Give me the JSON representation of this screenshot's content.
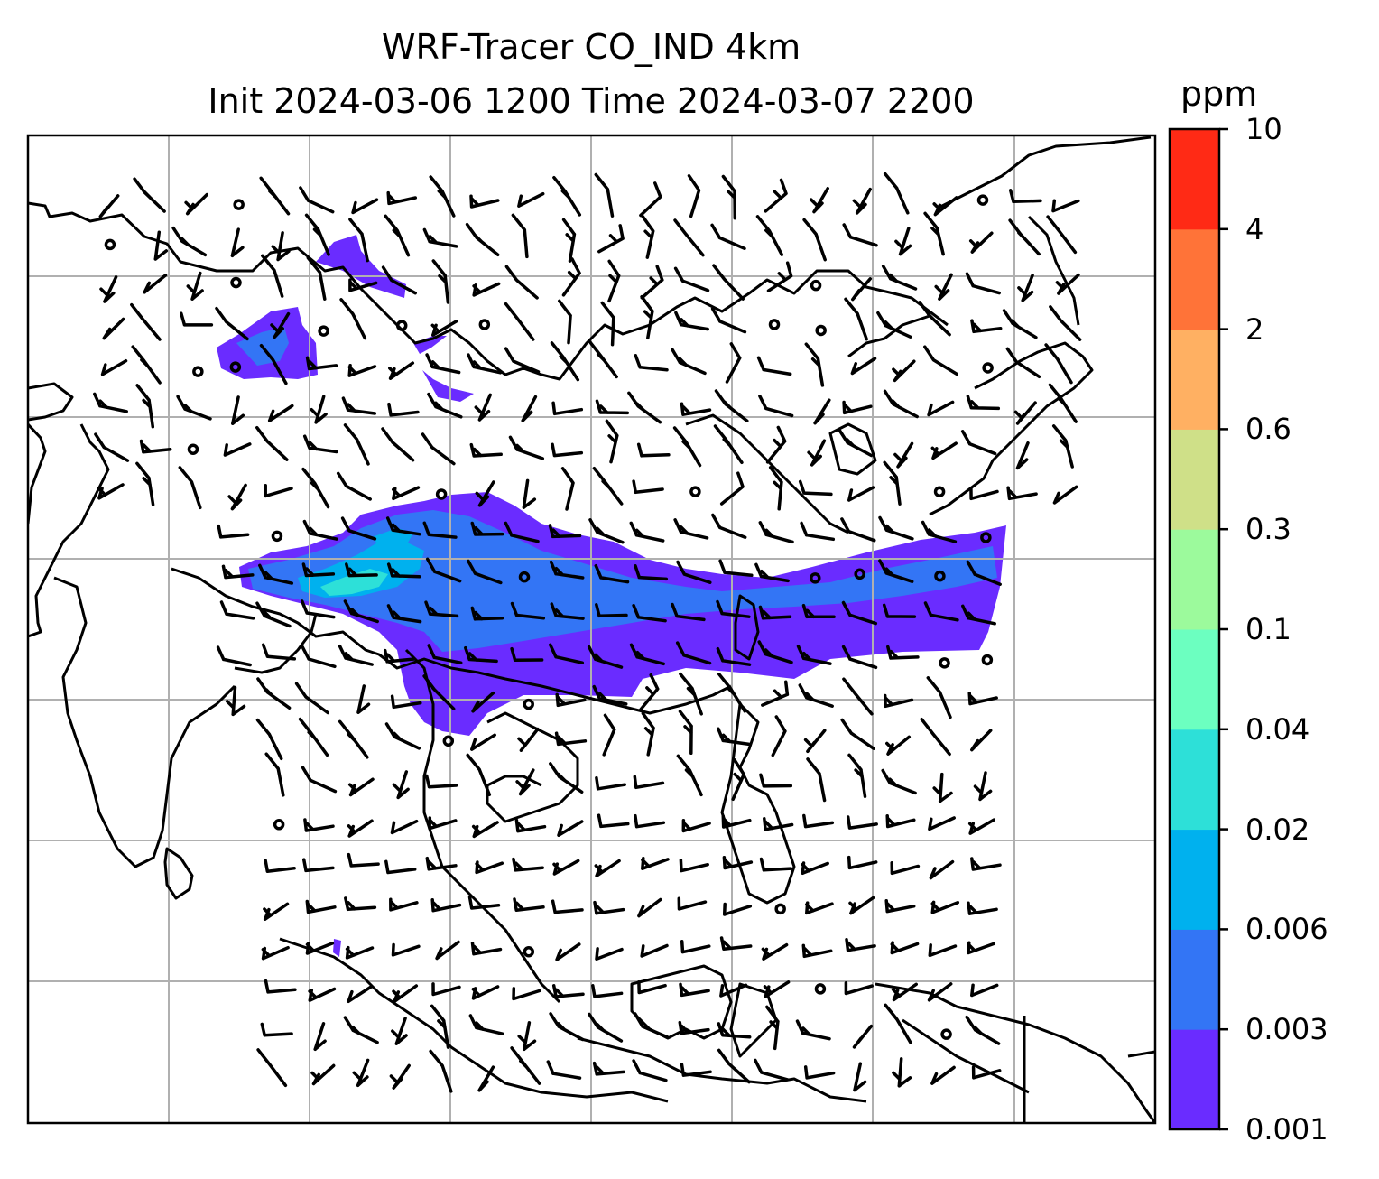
{
  "title": "WRF-Tracer CO_IND 4km",
  "subtitle": "Init 2024-03-06 1200 Time 2024-03-07 2200",
  "colorbar": {
    "unit": "ppm",
    "levels": [
      "0.001",
      "0.003",
      "0.006",
      "0.02",
      "0.04",
      "0.1",
      "0.3",
      "0.6",
      "2",
      "4",
      "10"
    ],
    "colors": [
      "#6a2cff",
      "#3375f5",
      "#00b1ee",
      "#2de0d8",
      "#6cffc0",
      "#9cfa9c",
      "#cfe088",
      "#ffb062",
      "#ff7338",
      "#ff2a15"
    ]
  },
  "map": {
    "plume_colors": {
      "outer": "#6a2cff",
      "mid": "#3375f5",
      "inner": "#00b1ee",
      "core": "#2de0d8"
    },
    "gridline_color": "#b0b0b0",
    "coastline_color": "#000000"
  }
}
